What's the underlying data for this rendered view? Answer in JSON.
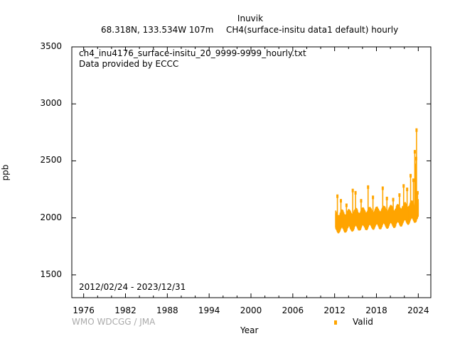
{
  "header": {
    "station": "Inuvik",
    "coords": "68.318N, 133.534W 107m",
    "dataset": "CH4(surface-insitu data1 default) hourly"
  },
  "annotations": {
    "filename": "ch4_inu4176_surface-insitu_20_9999-9999_hourly.txt",
    "provider": "Data provided by ECCC",
    "date_range": "2012/02/24 - 2023/12/31",
    "credit": "WMO WDCGG / JMA"
  },
  "colors": {
    "series": "#FFA500",
    "credit": "#aaaaaa",
    "frame": "#000000"
  },
  "chart_data": {
    "type": "scatter",
    "xlabel": "Year",
    "ylabel": "ppb",
    "xlim": [
      1974.3,
      2025.8
    ],
    "ylim": [
      1300,
      3500
    ],
    "x_ticks": [
      "1976",
      "1982",
      "1988",
      "1994",
      "2000",
      "2006",
      "2012",
      "2018",
      "2024"
    ],
    "y_ticks": [
      "1500",
      "2000",
      "2500",
      "3000",
      "3500"
    ],
    "grid": false,
    "legend_position": "bottom-right",
    "series": [
      {
        "name": "Valid",
        "color": "#FFA500",
        "baseline": [
          [
            2012.15,
            1960
          ],
          [
            2013.0,
            1965
          ],
          [
            2014.0,
            1970
          ],
          [
            2015.0,
            1980
          ],
          [
            2016.0,
            1985
          ],
          [
            2017.0,
            1990
          ],
          [
            2018.0,
            1995
          ],
          [
            2019.0,
            2000
          ],
          [
            2020.0,
            2005
          ],
          [
            2021.0,
            2012
          ],
          [
            2022.0,
            2030
          ],
          [
            2023.0,
            2045
          ],
          [
            2024.0,
            2060
          ]
        ],
        "spikes": [
          [
            2012.4,
            2190
          ],
          [
            2012.9,
            2150
          ],
          [
            2013.7,
            2110
          ],
          [
            2014.6,
            2240
          ],
          [
            2015.0,
            2220
          ],
          [
            2015.8,
            2150
          ],
          [
            2016.8,
            2270
          ],
          [
            2017.5,
            2180
          ],
          [
            2018.9,
            2260
          ],
          [
            2019.5,
            2170
          ],
          [
            2020.4,
            2160
          ],
          [
            2021.3,
            2200
          ],
          [
            2021.9,
            2280
          ],
          [
            2022.4,
            2250
          ],
          [
            2022.9,
            2370
          ],
          [
            2023.3,
            2330
          ],
          [
            2023.5,
            2580
          ],
          [
            2023.6,
            2460
          ],
          [
            2023.7,
            2520
          ],
          [
            2023.75,
            2770
          ],
          [
            2023.9,
            2220
          ]
        ]
      }
    ]
  }
}
